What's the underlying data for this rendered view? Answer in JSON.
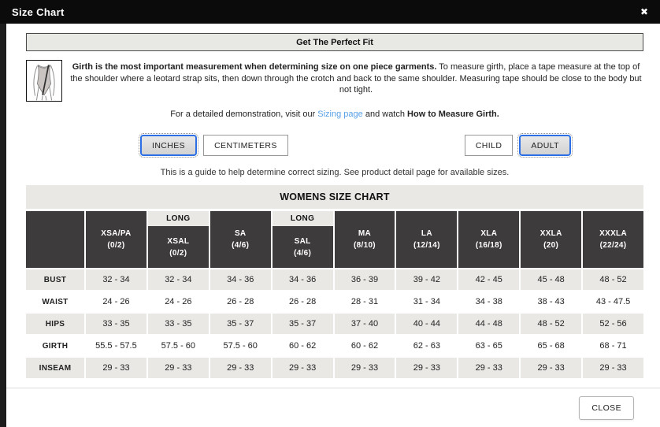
{
  "modal": {
    "title": "Size Chart",
    "close_icon": "✖",
    "close_button_label": "CLOSE"
  },
  "banner_text": "Get The Perfect Fit",
  "intro": {
    "bold": "Girth is the most important measurement when determining size on one piece garments.",
    "rest": " To measure girth, place a tape measure at the top of the shoulder where a leotard strap sits, then down through the crotch and back to the same shoulder. Measuring tape should be close to the body but not tight."
  },
  "demo_line": {
    "prefix": "For a detailed demonstration, visit our ",
    "link": "Sizing page",
    "middle": " and watch ",
    "bold": "How to Measure Girth."
  },
  "unit_toggle": {
    "options": [
      "INCHES",
      "CENTIMETERS"
    ],
    "selected": "INCHES"
  },
  "age_toggle": {
    "options": [
      "CHILD",
      "ADULT"
    ],
    "selected": "ADULT"
  },
  "guide_note": "This is a guide to help determine correct sizing. See product detail page for available sizes.",
  "chart": {
    "title": "WOMENS SIZE CHART",
    "type": "table",
    "columns": [
      {
        "long": "",
        "name": "",
        "range": ""
      },
      {
        "long": "",
        "name": "XSA/PA",
        "range": "(0/2)"
      },
      {
        "long": "LONG",
        "name": "XSAL",
        "range": "(0/2)"
      },
      {
        "long": "",
        "name": "SA",
        "range": "(4/6)"
      },
      {
        "long": "LONG",
        "name": "SAL",
        "range": "(4/6)"
      },
      {
        "long": "",
        "name": "MA",
        "range": "(8/10)"
      },
      {
        "long": "",
        "name": "LA",
        "range": "(12/14)"
      },
      {
        "long": "",
        "name": "XLA",
        "range": "(16/18)"
      },
      {
        "long": "",
        "name": "XXLA",
        "range": "(20)"
      },
      {
        "long": "",
        "name": "XXXLA",
        "range": "(22/24)"
      }
    ],
    "rows": [
      {
        "label": "BUST",
        "values": [
          "32 - 34",
          "32 - 34",
          "34 - 36",
          "34 - 36",
          "36 - 39",
          "39 - 42",
          "42 - 45",
          "45 - 48",
          "48 - 52"
        ]
      },
      {
        "label": "WAIST",
        "values": [
          "24 - 26",
          "24 - 26",
          "26 - 28",
          "26 - 28",
          "28 - 31",
          "31 - 34",
          "34 - 38",
          "38 - 43",
          "43 - 47.5"
        ]
      },
      {
        "label": "HIPS",
        "values": [
          "33 - 35",
          "33 - 35",
          "35 - 37",
          "35 - 37",
          "37 - 40",
          "40 - 44",
          "44 - 48",
          "48 - 52",
          "52 - 56"
        ]
      },
      {
        "label": "GIRTH",
        "values": [
          "55.5 - 57.5",
          "57.5 - 60",
          "57.5 - 60",
          "60 - 62",
          "60 - 62",
          "62 - 63",
          "63 - 65",
          "65 - 68",
          "68 - 71"
        ]
      },
      {
        "label": "INSEAM",
        "values": [
          "29 - 33",
          "29 - 33",
          "29 - 33",
          "29 - 33",
          "29 - 33",
          "29 - 33",
          "29 - 33",
          "29 - 33",
          "29 - 33"
        ]
      }
    ]
  },
  "colors": {
    "titlebar_bg": "#0b0b0b",
    "header_cell_bg": "#3e3b3c",
    "stripe_bg": "#e9e8e5",
    "link_blue": "#58a0e6",
    "selected_border_blue": "#2c6fe4"
  }
}
